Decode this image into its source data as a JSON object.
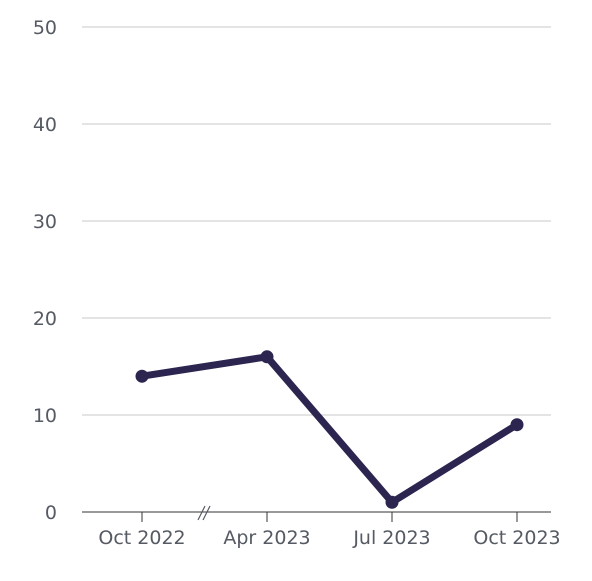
{
  "chart_data": {
    "type": "line",
    "title": "",
    "xlabel": "",
    "ylabel": "",
    "x": [
      "Oct 2022",
      "Apr 2023",
      "Jul 2023",
      "Oct 2023"
    ],
    "series": [
      {
        "values": [
          14,
          16,
          1,
          9
        ]
      }
    ],
    "ylim": [
      0,
      50
    ],
    "yticks": [
      0,
      10,
      20,
      30,
      40,
      50
    ],
    "xtick_labels": [
      "Oct 2022",
      "Apr 2023",
      "Jul 2023",
      "Oct 2023"
    ],
    "axis_break": "between Oct 2022 and Apr 2023",
    "grid": "horizontal",
    "legend": "none",
    "colors": {
      "line": "#2b2550",
      "grid": "#c8c8c8",
      "text": "#555a63"
    }
  }
}
